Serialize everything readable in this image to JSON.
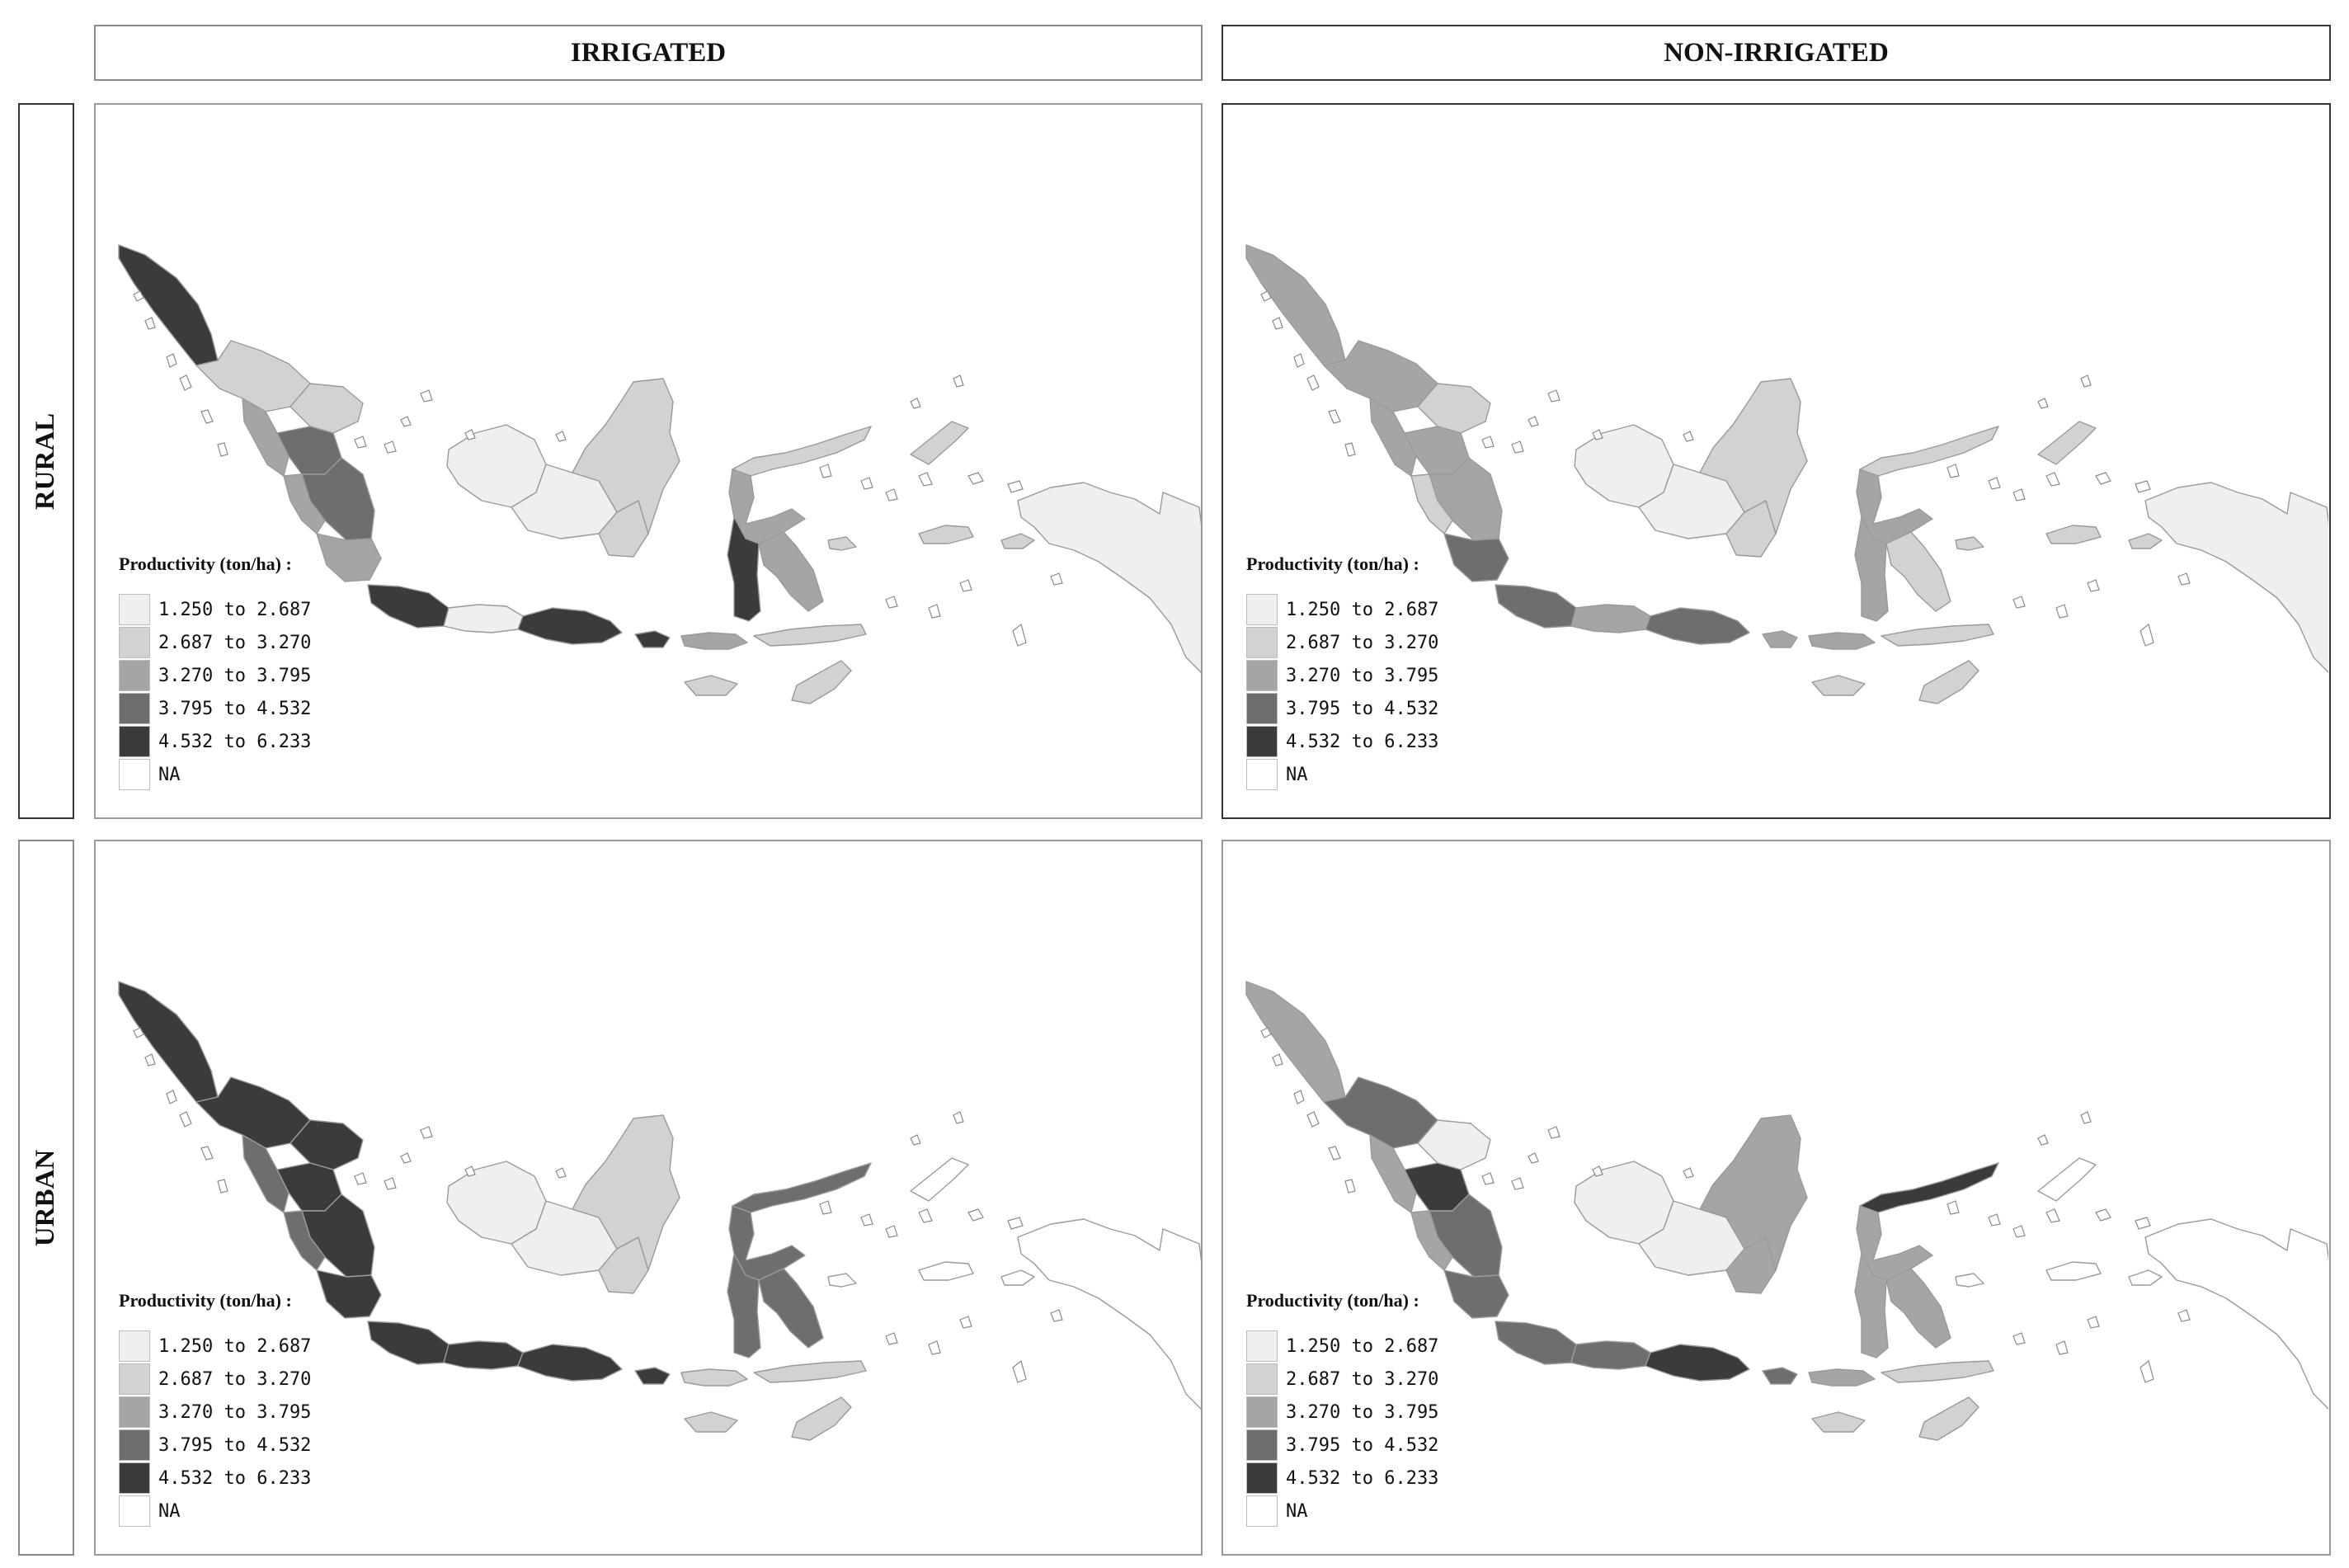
{
  "columns": [
    "IRRIGATED",
    "NON-IRRIGATED"
  ],
  "rows": [
    "RURAL",
    "URBAN"
  ],
  "legend": {
    "title": "Productivity (ton/ha) :",
    "classes": [
      {
        "label": "1.250 to 2.687",
        "color": "#efefef"
      },
      {
        "label": "2.687 to 3.270",
        "color": "#d2d2d2"
      },
      {
        "label": "3.270 to 3.795",
        "color": "#a5a5a5"
      },
      {
        "label": "3.795 to 4.532",
        "color": "#6e6e6e"
      },
      {
        "label": "4.532 to 6.233",
        "color": "#3b3b3b"
      },
      {
        "label": "NA",
        "color": "#ffffff"
      }
    ]
  },
  "panels": [
    {
      "row": "RURAL",
      "column": "IRRIGATED",
      "regions": {
        "aceh": 5,
        "sumut": 2,
        "sumbar": 3,
        "riau": 2,
        "jambi": 4,
        "sumsel": 4,
        "bengkulu": 3,
        "lampung": 3,
        "kalbar": 1,
        "kalteng": 1,
        "kalsel": 2,
        "kaltim": 2,
        "jabar": 5,
        "jateng": 1,
        "jatim": 5,
        "bali": 5,
        "ntb": 3,
        "ntt": 2,
        "timor": 2,
        "sulut": 2,
        "sulteng": 3,
        "sulsel": 5,
        "sultra": 3,
        "maluku": 2,
        "papua": 1
      }
    },
    {
      "row": "RURAL",
      "column": "NON-IRRIGATED",
      "regions": {
        "aceh": 3,
        "sumut": 3,
        "sumbar": 3,
        "riau": 2,
        "jambi": 3,
        "sumsel": 3,
        "bengkulu": 2,
        "lampung": 4,
        "kalbar": 1,
        "kalteng": 1,
        "kalsel": 2,
        "kaltim": 2,
        "jabar": 4,
        "jateng": 3,
        "jatim": 4,
        "bali": 3,
        "ntb": 3,
        "ntt": 2,
        "timor": 2,
        "sulut": 2,
        "sulteng": 3,
        "sulsel": 3,
        "sultra": 2,
        "maluku": 2,
        "papua": 1
      }
    },
    {
      "row": "URBAN",
      "column": "IRRIGATED",
      "regions": {
        "aceh": 5,
        "sumut": 5,
        "sumbar": 4,
        "riau": 5,
        "jambi": 5,
        "sumsel": 5,
        "bengkulu": 4,
        "lampung": 5,
        "kalbar": 1,
        "kalteng": 1,
        "kalsel": 2,
        "kaltim": 2,
        "jabar": 5,
        "jateng": 5,
        "jatim": 5,
        "bali": 5,
        "ntb": 2,
        "ntt": 2,
        "timor": 2,
        "sulut": 4,
        "sulteng": 4,
        "sulsel": 4,
        "sultra": 4,
        "maluku": 0,
        "papua": 0
      }
    },
    {
      "row": "URBAN",
      "column": "NON-IRRIGATED",
      "regions": {
        "aceh": 3,
        "sumut": 4,
        "sumbar": 3,
        "riau": 1,
        "jambi": 5,
        "sumsel": 4,
        "bengkulu": 3,
        "lampung": 4,
        "kalbar": 1,
        "kalteng": 1,
        "kalsel": 3,
        "kaltim": 3,
        "jabar": 4,
        "jateng": 4,
        "jatim": 5,
        "bali": 4,
        "ntb": 3,
        "ntt": 2,
        "timor": 2,
        "sulut": 5,
        "sulteng": 3,
        "sulsel": 3,
        "sultra": 3,
        "maluku": 0,
        "papua": 0
      }
    }
  ]
}
